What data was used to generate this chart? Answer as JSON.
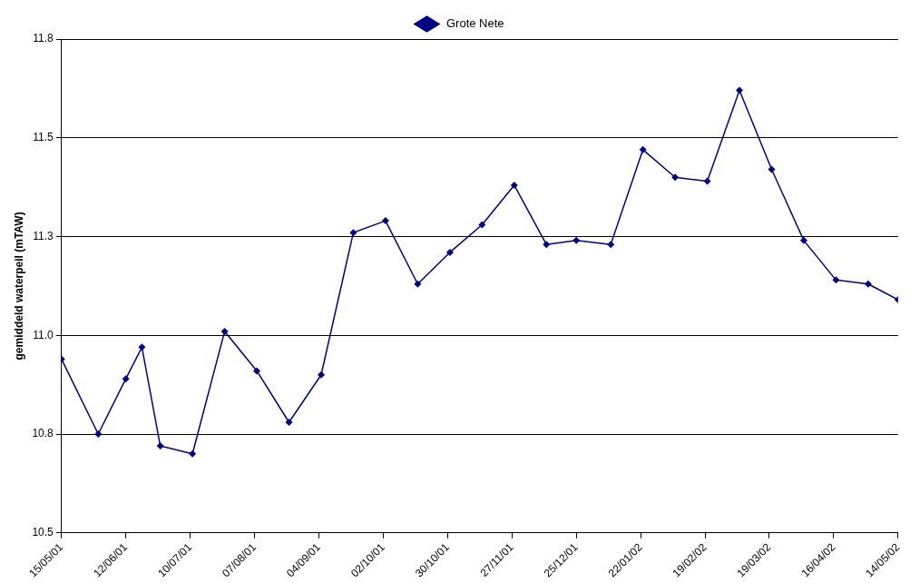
{
  "chart_data": {
    "type": "line",
    "ylabel": "gemiddeld waterpeil (mTAW)",
    "x": [
      "2001-05-15",
      "2001-05-31",
      "2001-06-12",
      "2001-06-19",
      "2001-06-27",
      "2001-07-11",
      "2001-07-25",
      "2001-08-08",
      "2001-08-22",
      "2001-09-05",
      "2001-09-19",
      "2001-10-03",
      "2001-10-17",
      "2001-10-31",
      "2001-11-14",
      "2001-11-28",
      "2001-12-12",
      "2001-12-25",
      "2002-01-09",
      "2002-01-23",
      "2002-02-06",
      "2002-02-20",
      "2002-03-06",
      "2002-03-20",
      "2002-04-03",
      "2002-04-17",
      "2002-05-01",
      "2002-05-14"
    ],
    "series": [
      {
        "name": "Grote Nete",
        "color": "#000080",
        "values": [
          10.94,
          10.75,
          10.89,
          10.97,
          10.72,
          10.7,
          11.01,
          10.91,
          10.78,
          10.9,
          11.26,
          11.29,
          11.13,
          11.21,
          11.28,
          11.38,
          11.23,
          11.24,
          11.23,
          11.47,
          11.4,
          11.39,
          11.62,
          11.42,
          11.24,
          11.14,
          11.13,
          11.09
        ]
      }
    ],
    "xlim": [
      "2001-05-15",
      "2002-05-14"
    ],
    "xticks": [
      {
        "value": "2001-05-15",
        "label": "15/05/01"
      },
      {
        "value": "2001-06-12",
        "label": "12/06/01"
      },
      {
        "value": "2001-07-10",
        "label": "10/07/01"
      },
      {
        "value": "2001-08-07",
        "label": "07/08/01"
      },
      {
        "value": "2001-09-04",
        "label": "04/09/01"
      },
      {
        "value": "2001-10-02",
        "label": "02/10/01"
      },
      {
        "value": "2001-10-30",
        "label": "30/10/01"
      },
      {
        "value": "2001-11-27",
        "label": "27/11/01"
      },
      {
        "value": "2001-12-25",
        "label": "25/12/01"
      },
      {
        "value": "2002-01-22",
        "label": "22/01/02"
      },
      {
        "value": "2002-02-19",
        "label": "19/02/02"
      },
      {
        "value": "2002-03-19",
        "label": "19/03/02"
      },
      {
        "value": "2002-04-16",
        "label": "16/04/02"
      },
      {
        "value": "2002-05-14",
        "label": "14/05/02"
      }
    ],
    "ylim": [
      10.5,
      11.75
    ],
    "yticks": [
      10.5,
      {
        "value": 10.75,
        "label": "10.8"
      },
      {
        "value": 11,
        "label": "11.0"
      },
      {
        "value": 11.25,
        "label": "11.3"
      },
      11.5,
      {
        "value": 11.75,
        "label": "11.8"
      }
    ],
    "grid": "y",
    "legend": "top",
    "marker": "diamond",
    "line_style": "solid"
  }
}
